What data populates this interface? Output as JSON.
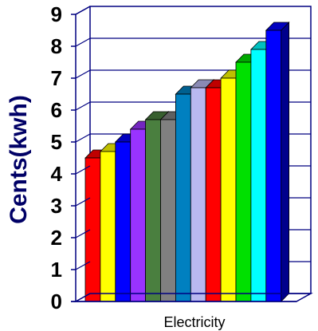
{
  "chart_data": {
    "type": "bar",
    "categories": [
      "Electricity"
    ],
    "xlabel": "Electricity",
    "ylabel": "Cents(kwh)",
    "ylim": [
      0,
      9
    ],
    "y_ticks": [
      "0",
      "1",
      "2",
      "3",
      "4",
      "5",
      "6",
      "7",
      "8",
      "9"
    ],
    "grid": true,
    "legend": "none",
    "style": "3d",
    "series": [
      {
        "values": [
          4.5
        ],
        "color": "#ff0000"
      },
      {
        "values": [
          4.7
        ],
        "color": "#ffff00"
      },
      {
        "values": [
          5.0
        ],
        "color": "#0000ff"
      },
      {
        "values": [
          5.4
        ],
        "color": "#9933ff"
      },
      {
        "values": [
          5.7
        ],
        "color": "#4a7f3f"
      },
      {
        "values": [
          5.7
        ],
        "color": "#808080"
      },
      {
        "values": [
          6.5
        ],
        "color": "#0080c0"
      },
      {
        "values": [
          6.7
        ],
        "color": "#b8b8f0"
      },
      {
        "values": [
          6.7
        ],
        "color": "#ff0000"
      },
      {
        "values": [
          7.0
        ],
        "color": "#ffff00"
      },
      {
        "values": [
          7.5
        ],
        "color": "#00e000"
      },
      {
        "values": [
          7.9
        ],
        "color": "#00ffff"
      },
      {
        "values": [
          8.5
        ],
        "color": "#0000ff"
      }
    ]
  },
  "theme": {
    "ylabel_color": "#000066",
    "axis_color": "#000080"
  }
}
